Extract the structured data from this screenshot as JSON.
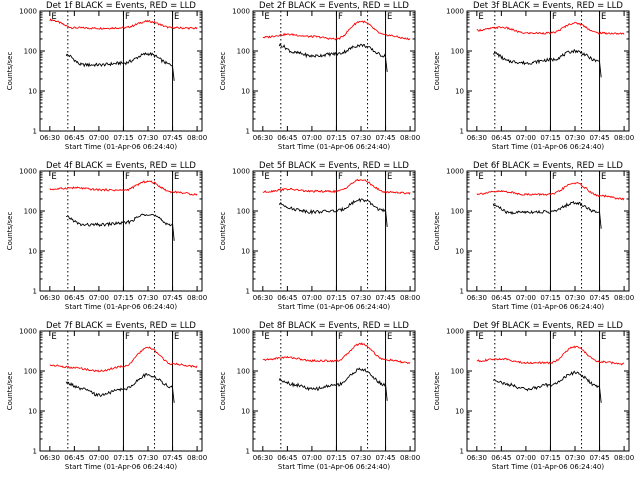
{
  "chart_data": [
    {
      "type": "line",
      "title": "Det 1f BLACK = Events, RED = LLD",
      "xlabel": "Start Time (01-Apr-06 06:24:40)",
      "ylabel": "Counts/sec",
      "yscale": "log",
      "ylim": [
        1,
        1000
      ],
      "x_ticks": [
        "06:30",
        "06:45",
        "07:00",
        "07:15",
        "07:30",
        "07:45",
        "08:00"
      ],
      "y_ticks": [
        "1",
        "10",
        "100",
        "1000"
      ],
      "markers": [
        {
          "label": "E",
          "time": "06:30",
          "style": "dotted"
        },
        {
          "label": "F",
          "time": "07:15",
          "style": "solid"
        },
        {
          "label": "E",
          "time": "07:45",
          "style": "solid"
        }
      ],
      "dotted_times": [
        "06:41",
        "07:34"
      ],
      "series": [
        {
          "color": "#ff0000",
          "x": [
            "06:30",
            "06:45",
            "07:00",
            "07:15",
            "07:30",
            "07:45",
            "08:00"
          ],
          "values": [
            600,
            380,
            370,
            380,
            550,
            380,
            370
          ]
        },
        {
          "color": "#000000",
          "x": [
            "06:40",
            "06:50",
            "07:00",
            "07:15",
            "07:30",
            "07:45"
          ],
          "values": [
            80,
            45,
            45,
            50,
            85,
            45
          ]
        }
      ]
    },
    {
      "type": "line",
      "title": "Det 2f BLACK = Events, RED = LLD",
      "xlabel": "Start Time (01-Apr-06 06:24:40)",
      "ylabel": "Counts/sec",
      "yscale": "log",
      "ylim": [
        1,
        1000
      ],
      "x_ticks": [
        "06:30",
        "06:45",
        "07:00",
        "07:15",
        "07:30",
        "07:45",
        "08:00"
      ],
      "y_ticks": [
        "1",
        "10",
        "100",
        "1000"
      ],
      "markers": [
        {
          "label": "E",
          "time": "06:30",
          "style": "dotted"
        },
        {
          "label": "F",
          "time": "07:15",
          "style": "solid"
        },
        {
          "label": "E",
          "time": "07:45",
          "style": "solid"
        }
      ],
      "dotted_times": [
        "06:41",
        "07:34"
      ],
      "series": [
        {
          "color": "#ff0000",
          "x": [
            "06:30",
            "06:45",
            "07:00",
            "07:15",
            "07:30",
            "07:45",
            "08:00"
          ],
          "values": [
            220,
            260,
            230,
            200,
            550,
            250,
            200
          ]
        },
        {
          "color": "#000000",
          "x": [
            "06:40",
            "06:50",
            "07:00",
            "07:15",
            "07:30",
            "07:45"
          ],
          "values": [
            140,
            90,
            75,
            85,
            140,
            75
          ]
        }
      ]
    },
    {
      "type": "line",
      "title": "Det 3f BLACK = Events, RED = LLD",
      "xlabel": "Start Time (01-Apr-06 06:24:40)",
      "ylabel": "Counts/sec",
      "yscale": "log",
      "ylim": [
        1,
        1000
      ],
      "x_ticks": [
        "06:30",
        "06:45",
        "07:00",
        "07:15",
        "07:30",
        "07:45",
        "08:00"
      ],
      "y_ticks": [
        "1",
        "10",
        "100",
        "1000"
      ],
      "markers": [
        {
          "label": "E",
          "time": "06:30",
          "style": "dotted"
        },
        {
          "label": "F",
          "time": "07:15",
          "style": "solid"
        },
        {
          "label": "E",
          "time": "07:45",
          "style": "solid"
        }
      ],
      "dotted_times": [
        "06:41",
        "07:34"
      ],
      "series": [
        {
          "color": "#ff0000",
          "x": [
            "06:30",
            "06:45",
            "07:00",
            "07:15",
            "07:30",
            "07:45",
            "08:00"
          ],
          "values": [
            330,
            390,
            280,
            280,
            500,
            280,
            270
          ]
        },
        {
          "color": "#000000",
          "x": [
            "06:40",
            "06:50",
            "07:00",
            "07:15",
            "07:30",
            "07:45"
          ],
          "values": [
            90,
            55,
            50,
            60,
            100,
            55
          ]
        }
      ]
    },
    {
      "type": "line",
      "title": "Det 4f BLACK = Events, RED = LLD",
      "xlabel": "Start Time (01-Apr-06 06:24:40)",
      "ylabel": "Counts/sec",
      "yscale": "log",
      "ylim": [
        1,
        1000
      ],
      "x_ticks": [
        "06:30",
        "06:45",
        "07:00",
        "07:15",
        "07:30",
        "07:45",
        "08:00"
      ],
      "y_ticks": [
        "1",
        "10",
        "100",
        "1000"
      ],
      "markers": [
        {
          "label": "E",
          "time": "06:30",
          "style": "dotted"
        },
        {
          "label": "F",
          "time": "07:15",
          "style": "solid"
        },
        {
          "label": "E",
          "time": "07:45",
          "style": "solid"
        }
      ],
      "dotted_times": [
        "06:41",
        "07:34"
      ],
      "series": [
        {
          "color": "#ff0000",
          "x": [
            "06:30",
            "06:45",
            "07:00",
            "07:15",
            "07:30",
            "07:45",
            "08:00"
          ],
          "values": [
            350,
            380,
            340,
            330,
            550,
            300,
            260
          ]
        },
        {
          "color": "#000000",
          "x": [
            "06:40",
            "06:50",
            "07:00",
            "07:15",
            "07:30",
            "07:45"
          ],
          "values": [
            70,
            45,
            45,
            50,
            85,
            45
          ]
        }
      ]
    },
    {
      "type": "line",
      "title": "Det 5f BLACK = Events, RED = LLD",
      "xlabel": "Start Time (01-Apr-06 06:24:40)",
      "ylabel": "Counts/sec",
      "yscale": "log",
      "ylim": [
        1,
        1000
      ],
      "x_ticks": [
        "06:30",
        "06:45",
        "07:00",
        "07:15",
        "07:30",
        "07:45",
        "08:00"
      ],
      "y_ticks": [
        "1",
        "10",
        "100",
        "1000"
      ],
      "markers": [
        {
          "label": "E",
          "time": "06:30",
          "style": "dotted"
        },
        {
          "label": "F",
          "time": "07:15",
          "style": "solid"
        },
        {
          "label": "E",
          "time": "07:45",
          "style": "solid"
        }
      ],
      "dotted_times": [
        "06:41",
        "07:34"
      ],
      "series": [
        {
          "color": "#ff0000",
          "x": [
            "06:30",
            "06:45",
            "07:00",
            "07:15",
            "07:30",
            "07:45",
            "08:00"
          ],
          "values": [
            300,
            350,
            310,
            310,
            600,
            300,
            280
          ]
        },
        {
          "color": "#000000",
          "x": [
            "06:40",
            "06:50",
            "07:00",
            "07:15",
            "07:30",
            "07:45"
          ],
          "values": [
            150,
            110,
            95,
            100,
            190,
            100
          ]
        }
      ]
    },
    {
      "type": "line",
      "title": "Det 6f BLACK = Events, RED = LLD",
      "xlabel": "Start Time (01-Apr-06 06:24:40)",
      "ylabel": "Counts/sec",
      "yscale": "log",
      "ylim": [
        1,
        1000
      ],
      "x_ticks": [
        "06:30",
        "06:45",
        "07:00",
        "07:15",
        "07:30",
        "07:45",
        "08:00"
      ],
      "y_ticks": [
        "1",
        "10",
        "100",
        "1000"
      ],
      "markers": [
        {
          "label": "E",
          "time": "06:30",
          "style": "dotted"
        },
        {
          "label": "F",
          "time": "07:15",
          "style": "solid"
        },
        {
          "label": "E",
          "time": "07:45",
          "style": "solid"
        }
      ],
      "dotted_times": [
        "06:41",
        "07:34"
      ],
      "series": [
        {
          "color": "#ff0000",
          "x": [
            "06:30",
            "06:45",
            "07:00",
            "07:15",
            "07:30",
            "07:45",
            "08:00"
          ],
          "values": [
            270,
            310,
            260,
            260,
            500,
            240,
            200
          ]
        },
        {
          "color": "#000000",
          "x": [
            "06:40",
            "06:50",
            "07:00",
            "07:15",
            "07:30",
            "07:45"
          ],
          "values": [
            140,
            90,
            95,
            95,
            160,
            90
          ]
        }
      ]
    },
    {
      "type": "line",
      "title": "Det 7f BLACK = Events, RED = LLD",
      "xlabel": "Start Time (01-Apr-06 06:24:40)",
      "ylabel": "Counts/sec",
      "yscale": "log",
      "ylim": [
        1,
        1000
      ],
      "x_ticks": [
        "06:30",
        "06:45",
        "07:00",
        "07:15",
        "07:30",
        "07:45",
        "08:00"
      ],
      "y_ticks": [
        "1",
        "10",
        "100",
        "1000"
      ],
      "markers": [
        {
          "label": "E",
          "time": "06:30",
          "style": "dotted"
        },
        {
          "label": "F",
          "time": "07:15",
          "style": "solid"
        },
        {
          "label": "E",
          "time": "07:45",
          "style": "solid"
        }
      ],
      "dotted_times": [
        "06:41",
        "07:34"
      ],
      "series": [
        {
          "color": "#ff0000",
          "x": [
            "06:30",
            "06:45",
            "07:00",
            "07:15",
            "07:30",
            "07:45",
            "08:00"
          ],
          "values": [
            140,
            120,
            100,
            130,
            380,
            150,
            130
          ]
        },
        {
          "color": "#000000",
          "x": [
            "06:40",
            "06:50",
            "07:00",
            "07:15",
            "07:30",
            "07:45"
          ],
          "values": [
            50,
            35,
            25,
            35,
            80,
            40
          ]
        }
      ]
    },
    {
      "type": "line",
      "title": "Det 8f BLACK = Events, RED = LLD",
      "xlabel": "Start Time (01-Apr-06 06:24:40)",
      "ylabel": "Counts/sec",
      "yscale": "log",
      "ylim": [
        1,
        1000
      ],
      "x_ticks": [
        "06:30",
        "06:45",
        "07:00",
        "07:15",
        "07:30",
        "07:45",
        "08:00"
      ],
      "y_ticks": [
        "1",
        "10",
        "100",
        "1000"
      ],
      "markers": [
        {
          "label": "E",
          "time": "06:30",
          "style": "dotted"
        },
        {
          "label": "F",
          "time": "07:15",
          "style": "solid"
        },
        {
          "label": "E",
          "time": "07:45",
          "style": "solid"
        }
      ],
      "dotted_times": [
        "06:41",
        "07:34"
      ],
      "series": [
        {
          "color": "#ff0000",
          "x": [
            "06:30",
            "06:45",
            "07:00",
            "07:15",
            "07:30",
            "07:45",
            "08:00"
          ],
          "values": [
            190,
            220,
            180,
            180,
            480,
            190,
            160
          ]
        },
        {
          "color": "#000000",
          "x": [
            "06:40",
            "06:50",
            "07:00",
            "07:15",
            "07:30",
            "07:45"
          ],
          "values": [
            60,
            45,
            35,
            45,
            110,
            45
          ]
        }
      ]
    },
    {
      "type": "line",
      "title": "Det 9f BLACK = Events, RED = LLD",
      "xlabel": "Start Time (01-Apr-06 06:24:40)",
      "ylabel": "Counts/sec",
      "yscale": "log",
      "ylim": [
        1,
        1000
      ],
      "x_ticks": [
        "06:30",
        "06:45",
        "07:00",
        "07:15",
        "07:30",
        "07:45",
        "08:00"
      ],
      "y_ticks": [
        "1",
        "10",
        "100",
        "1000"
      ],
      "markers": [
        {
          "label": "E",
          "time": "06:30",
          "style": "dotted"
        },
        {
          "label": "F",
          "time": "07:15",
          "style": "solid"
        },
        {
          "label": "E",
          "time": "07:45",
          "style": "solid"
        }
      ],
      "dotted_times": [
        "06:41",
        "07:34"
      ],
      "series": [
        {
          "color": "#ff0000",
          "x": [
            "06:30",
            "06:45",
            "07:00",
            "07:15",
            "07:30",
            "07:45",
            "08:00"
          ],
          "values": [
            180,
            200,
            160,
            160,
            400,
            170,
            150
          ]
        },
        {
          "color": "#000000",
          "x": [
            "06:40",
            "06:50",
            "07:00",
            "07:15",
            "07:30",
            "07:45"
          ],
          "values": [
            60,
            45,
            35,
            45,
            90,
            40
          ]
        }
      ]
    }
  ]
}
